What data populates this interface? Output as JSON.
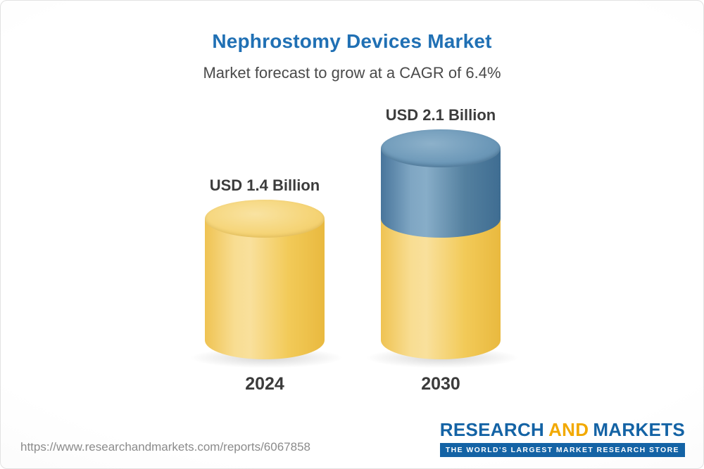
{
  "header": {
    "title": "Nephrostomy Devices Market",
    "subtitle": "Market forecast to grow at a CAGR of 6.4%"
  },
  "chart_data": {
    "type": "bar",
    "title": "Nephrostomy Devices Market",
    "subtitle": "Market forecast to grow at a CAGR of 6.4%",
    "cagr_percent": 6.4,
    "unit": "USD Billion",
    "categories": [
      "2024",
      "2030"
    ],
    "values": [
      1.4,
      2.1
    ],
    "value_labels": [
      "USD 1.4 Billion",
      "USD 2.1 Billion"
    ],
    "growth_segment": {
      "category": "2030",
      "base_value": 1.4,
      "growth_value": 0.7
    },
    "colors": {
      "base_bar": "#F2CA58",
      "growth_bar": "#54809F",
      "title": "#2070B4"
    },
    "bar_style": "3d-cylinder",
    "legend": "none",
    "grid": false
  },
  "footer": {
    "url": "https://www.researchandmarkets.com/reports/6067858",
    "logo": {
      "research": "RESEARCH",
      "and": "AND",
      "markets": "MARKETS",
      "tagline": "THE WORLD'S LARGEST MARKET RESEARCH STORE"
    }
  }
}
